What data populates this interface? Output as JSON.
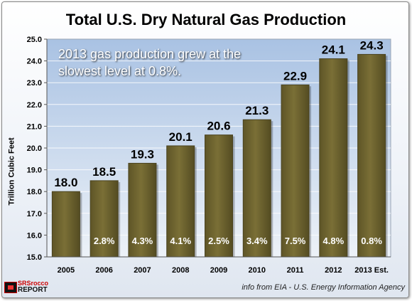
{
  "chart_data": {
    "type": "bar",
    "title": "Total U.S. Dry Natural Gas Production",
    "ylabel": "Trillion Cubic Feet",
    "xlabel": "",
    "categories": [
      "2005",
      "2006",
      "2007",
      "2008",
      "2009",
      "2010",
      "2011",
      "2012",
      "2013 Est."
    ],
    "values": [
      18.0,
      18.5,
      19.3,
      20.1,
      20.6,
      21.3,
      22.9,
      24.1,
      24.3
    ],
    "value_labels": [
      "18.0",
      "18.5",
      "19.3",
      "20.1",
      "20.6",
      "21.3",
      "22.9",
      "24.1",
      "24.3"
    ],
    "growth_labels": [
      "",
      "2.8%",
      "4.3%",
      "4.1%",
      "2.5%",
      "3.4%",
      "7.5%",
      "4.8%",
      "0.8%"
    ],
    "ylim": [
      15.0,
      25.0
    ],
    "yticks": [
      "15.0",
      "16.0",
      "17.0",
      "18.0",
      "19.0",
      "20.0",
      "21.0",
      "22.0",
      "23.0",
      "24.0",
      "25.0"
    ],
    "grid": true,
    "annotation": "2013 gas production grew at the slowest level at 0.8%.",
    "colors": {
      "plot_bg_top": "#a9c2e3",
      "plot_bg_bottom": "#edf2f8",
      "bar": "#7a6f36",
      "bar_edge": "#4a4320"
    }
  },
  "footer": {
    "logo_line1": "SRSrocco",
    "logo_line2": "REPORT",
    "source": "info from EIA - U.S. Energy Information Agency"
  }
}
